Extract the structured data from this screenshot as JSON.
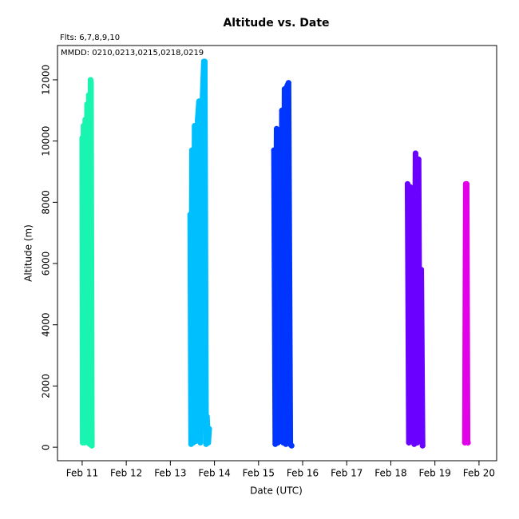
{
  "chart_data": {
    "type": "scatter",
    "title": "Altitude  vs. Date",
    "subtitle": "Flts: 6,7,8,9,10",
    "annotation": "MMDD: 0210,0213,0215,0218,0219",
    "x_label": "Date (UTC)",
    "y_label": "Altitude (m)",
    "xlim": [
      10.44,
      20.4
    ],
    "ylim": [
      -440,
      13120
    ],
    "xticks": [
      {
        "value": 11,
        "label": "Feb 11"
      },
      {
        "value": 12,
        "label": "Feb 12"
      },
      {
        "value": 13,
        "label": "Feb 13"
      },
      {
        "value": 14,
        "label": "Feb 14"
      },
      {
        "value": 15,
        "label": "Feb 15"
      },
      {
        "value": 16,
        "label": "Feb 16"
      },
      {
        "value": 17,
        "label": "Feb 17"
      },
      {
        "value": 18,
        "label": "Feb 18"
      },
      {
        "value": 19,
        "label": "Feb 19"
      },
      {
        "value": 20,
        "label": "Feb 20"
      }
    ],
    "yticks": [
      0,
      2000,
      4000,
      6000,
      8000,
      10000,
      12000
    ],
    "series": [
      {
        "color": "#19f5b0",
        "x": [
          11.0,
          11.01,
          11.03,
          11.05,
          11.07,
          11.09,
          11.11,
          11.13,
          11.15,
          11.17,
          11.19,
          11.2,
          11.22
        ],
        "values": [
          10100,
          150,
          10500,
          150,
          10700,
          200,
          11200,
          150,
          11500,
          100,
          12000,
          11900,
          50
        ]
      },
      {
        "color": "#00bfff",
        "x": [
          13.45,
          13.47,
          13.49,
          13.52,
          13.55,
          13.58,
          13.62,
          13.65,
          13.68,
          13.72,
          13.76,
          13.78,
          13.81,
          13.83,
          13.86,
          13.88
        ],
        "values": [
          7600,
          100,
          9700,
          150,
          10500,
          200,
          10700,
          11300,
          150,
          11000,
          12600,
          12600,
          100,
          1000,
          150,
          600
        ]
      },
      {
        "color": "#0035ff",
        "x": [
          15.35,
          15.38,
          15.41,
          15.44,
          15.47,
          15.5,
          15.53,
          15.56,
          15.59,
          15.62,
          15.65,
          15.68,
          15.72,
          15.75
        ],
        "values": [
          9700,
          100,
          10400,
          150,
          10300,
          200,
          11000,
          150,
          11700,
          100,
          11800,
          11900,
          100,
          50
        ]
      },
      {
        "color": "#6a00ff",
        "x": [
          18.38,
          18.41,
          18.44,
          18.47,
          18.5,
          18.53,
          18.56,
          18.6,
          18.63,
          18.66,
          18.69,
          18.72
        ],
        "values": [
          8600,
          150,
          8500,
          200,
          8000,
          100,
          9600,
          150,
          9400,
          200,
          5800,
          50
        ]
      },
      {
        "color": "#e100e8",
        "x": [
          19.68,
          19.7,
          19.72,
          19.74,
          19.75
        ],
        "values": [
          150,
          8600,
          8600,
          200,
          150
        ]
      }
    ]
  }
}
